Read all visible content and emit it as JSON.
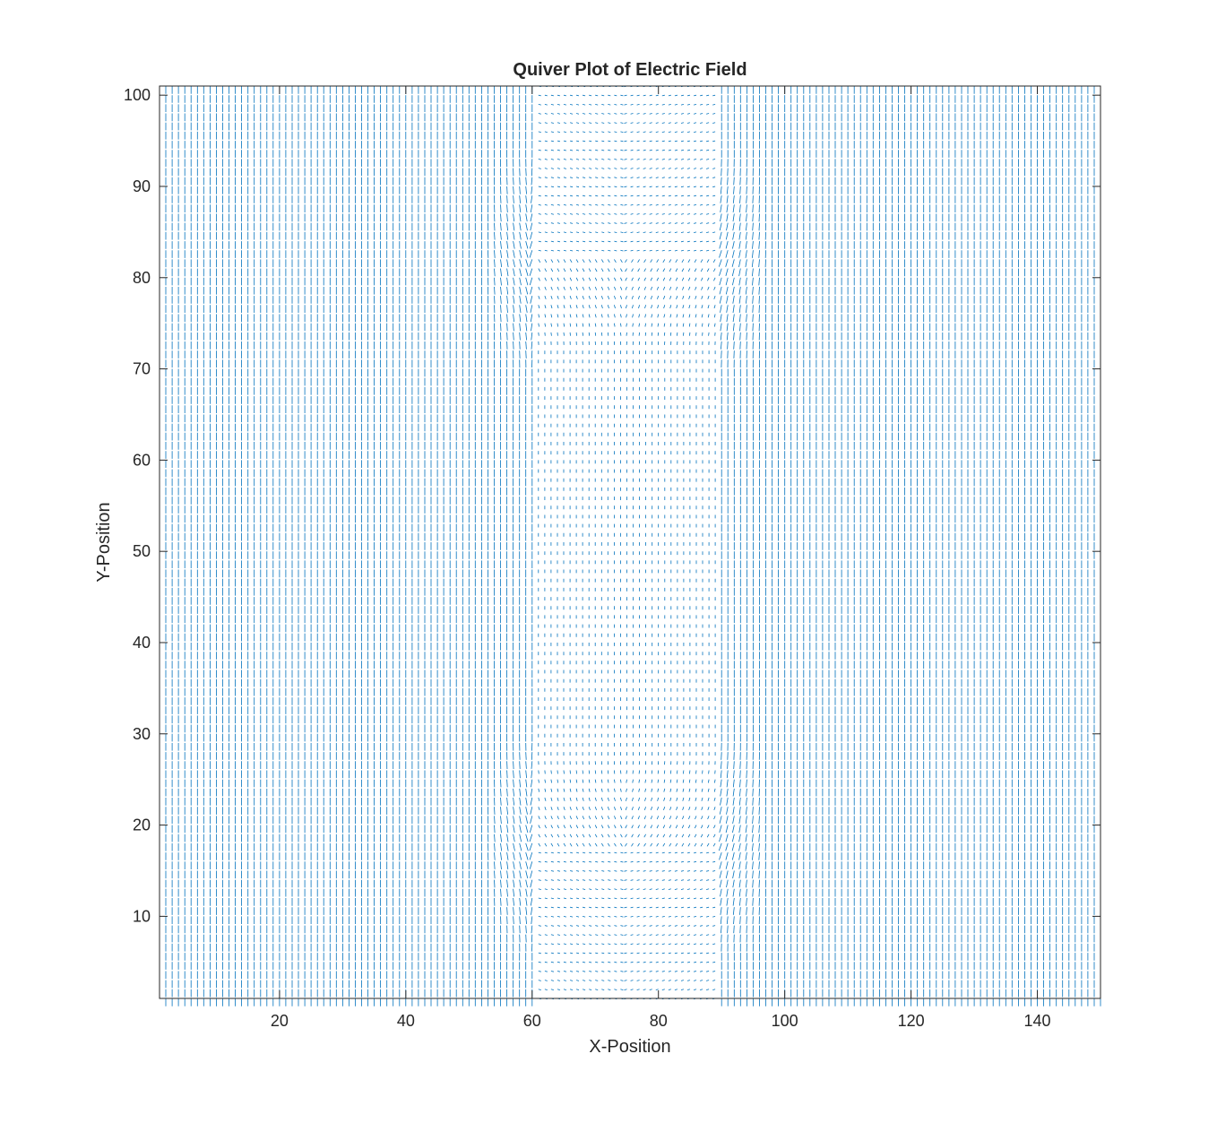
{
  "chart_data": {
    "type": "quiver",
    "title": "Quiver Plot of Electric Field",
    "xlabel": "X-Position",
    "ylabel": "Y-Position",
    "xlim": [
      1,
      150
    ],
    "ylim": [
      1,
      101
    ],
    "xticks": [
      20,
      40,
      60,
      80,
      100,
      120,
      140
    ],
    "yticks": [
      10,
      20,
      30,
      40,
      50,
      60,
      70,
      80,
      90,
      100
    ],
    "grid": false,
    "legend": "none",
    "color": "#0072BD",
    "grid_step": 1,
    "field_model": {
      "description": "Parallel-plate style field: uniform vertical arrows outside a dielectric region, weaker field inside it with fringing near its corners",
      "uniform_direction": "vertical",
      "uniform_magnitude": 1.0,
      "dielectric_region": {
        "x": [
          60,
          90
        ],
        "y": [
          18,
          82
        ]
      },
      "inner_gap_region": {
        "x": [
          60,
          90
        ],
        "y": [
          1,
          101
        ]
      },
      "inner_magnitude": 0.35
    }
  }
}
